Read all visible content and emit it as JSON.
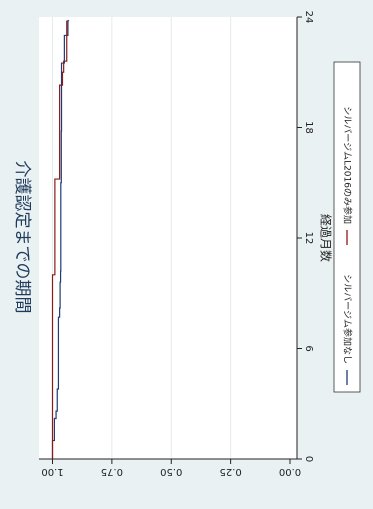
{
  "chart_data": {
    "type": "line",
    "title": "介護認定までの期間",
    "xlabel": "経過月数",
    "ylabel": "",
    "xlim": [
      0,
      24
    ],
    "ylim": [
      0,
      1
    ],
    "x_ticks": [
      0,
      6,
      12,
      18,
      24
    ],
    "y_ticks": [
      0.0,
      0.25,
      0.5,
      0.75,
      1.0
    ],
    "y_tick_labels": [
      "0.00",
      "0.25",
      "0.50",
      "0.75",
      "1.00"
    ],
    "grid": true,
    "legend_position": "bottom",
    "orientation": "rotated 90° clockwise",
    "step": true,
    "series": [
      {
        "name": "シルバージム参加なし",
        "color": "#1f3b73",
        "x": [
          0,
          1.0,
          2.2,
          2.6,
          3.8,
          7.7,
          8.2,
          9.6,
          10.2,
          15.0,
          17.8,
          21.5,
          23.0,
          23.8
        ],
        "y": [
          1.0,
          0.992,
          0.985,
          0.98,
          0.975,
          0.97,
          0.968,
          0.966,
          0.965,
          0.963,
          0.962,
          0.95,
          0.935,
          0.93
        ]
      },
      {
        "name": "シルバージムL2016のみ参加",
        "color": "#8b1a1a",
        "x": [
          0,
          10.0,
          15.2,
          20.3,
          21.0,
          21.6,
          23.8
        ],
        "y": [
          1.0,
          0.99,
          0.97,
          0.958,
          0.953,
          0.94,
          0.94
        ]
      }
    ]
  },
  "colors": {
    "panel_background": "#eaf1f3",
    "plot_background": "#ffffff",
    "title": "#1f3b5c",
    "gridline": "#e3ebee"
  }
}
